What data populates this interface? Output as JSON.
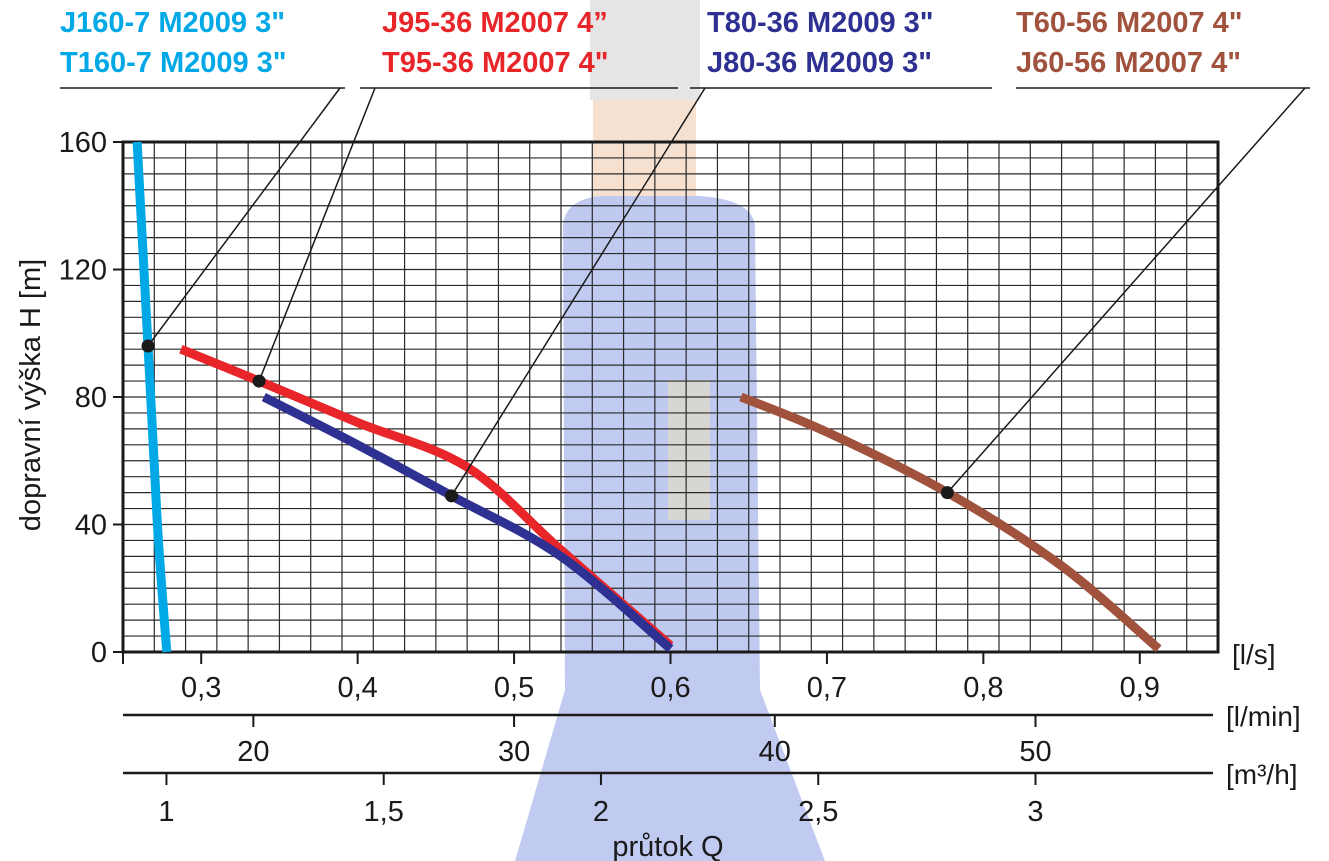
{
  "chart_data": {
    "type": "line",
    "ylabel": "dopravní výška H [m]",
    "xlabel": "průtok Q",
    "ylim": [
      0,
      160
    ],
    "yticks": [
      "0",
      "40",
      "80",
      "120",
      "160"
    ],
    "grid": true,
    "x_ls_range": [
      0.25,
      0.95
    ],
    "axes": [
      {
        "unit": "[l/s]",
        "ticks": [
          "0,3",
          "0,4",
          "0,5",
          "0,6",
          "0,7",
          "0,8",
          "0,9"
        ],
        "values": [
          0.3,
          0.4,
          0.5,
          0.6,
          0.7,
          0.8,
          0.9
        ]
      },
      {
        "unit": "[l/min]",
        "ticks": [
          "20",
          "30",
          "40",
          "50"
        ],
        "values": [
          20,
          30,
          40,
          50
        ]
      },
      {
        "unit": "[m³/h]",
        "ticks": [
          "1",
          "1,5",
          "2",
          "2,5",
          "3"
        ],
        "values": [
          1,
          1.5,
          2,
          2.5,
          3
        ]
      }
    ],
    "series": [
      {
        "labels": [
          "J160-7 M2009 3\"",
          "T160-7 M2009 3\""
        ],
        "color": "#00a8e6",
        "x": [
          0.259,
          0.266,
          0.272,
          0.278
        ],
        "y": [
          160,
          96,
          40,
          0
        ],
        "marker": [
          0.266,
          96
        ]
      },
      {
        "labels": [
          "J95-36 M2007 4”",
          "T95-36 M2007 4\""
        ],
        "color": "#e8262a",
        "x": [
          0.287,
          0.337,
          0.4,
          0.47,
          0.53,
          0.6
        ],
        "y": [
          95,
          85,
          72,
          58,
          32,
          2
        ],
        "marker": [
          0.337,
          85
        ]
      },
      {
        "labels": [
          "T80-36 M2009 3\"",
          "J80-36 M2009 3\""
        ],
        "color": "#2e3192",
        "x": [
          0.34,
          0.4,
          0.46,
          0.53,
          0.6
        ],
        "y": [
          80,
          65,
          49,
          30,
          1
        ],
        "marker": [
          0.46,
          49
        ]
      },
      {
        "labels": [
          "T60-56 M2007 4\"",
          "J60-56 M2007 4\""
        ],
        "color": "#a0523d",
        "x": [
          0.645,
          0.7,
          0.777,
          0.85,
          0.912
        ],
        "y": [
          80,
          69,
          50,
          27,
          1
        ],
        "marker": [
          0.777,
          50
        ]
      }
    ]
  }
}
